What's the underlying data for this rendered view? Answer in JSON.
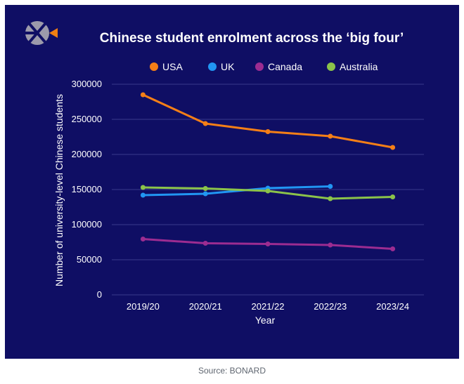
{
  "source_text": "Source: BONARD",
  "colors": {
    "background": "#0f0e64",
    "grid": "#3a3a8c",
    "text": "#ffffff",
    "logo_grey": "#9c9aab",
    "logo_accent": "#f07f13"
  },
  "logo": {
    "icon": "bonard-logo-icon"
  },
  "chart_data": {
    "type": "line",
    "title": "Chinese student enrolment across the ‘big four’",
    "xlabel": "Year",
    "ylabel": "Number of university-level Chinese students",
    "categories": [
      "2019/20",
      "2020/21",
      "2021/22",
      "2022/23",
      "2023/24"
    ],
    "y_ticks": [
      "0",
      "50000",
      "100000",
      "150000",
      "200000",
      "250000",
      "300000"
    ],
    "ylim": [
      0,
      300000
    ],
    "grid": true,
    "legend_position": "top",
    "series": [
      {
        "name": "USA",
        "color": "#f57f17",
        "values": [
          285000,
          244000,
          232500,
          226000,
          210000
        ]
      },
      {
        "name": "UK",
        "color": "#2196f3",
        "values": [
          142000,
          144000,
          152000,
          154500,
          null
        ]
      },
      {
        "name": "Canada",
        "color": "#9c2c91",
        "values": [
          79500,
          73500,
          72500,
          71000,
          65500
        ]
      },
      {
        "name": "Australia",
        "color": "#8bc34a",
        "values": [
          153000,
          151500,
          148000,
          137000,
          139500
        ]
      }
    ]
  }
}
